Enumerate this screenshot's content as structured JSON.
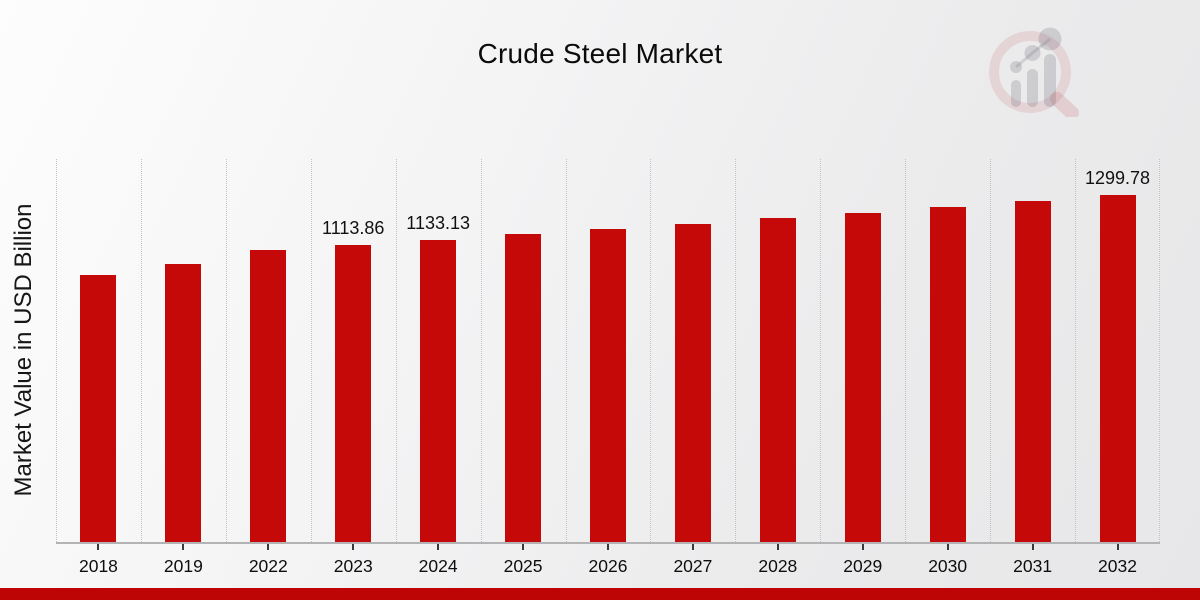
{
  "page": {
    "title": "Crude Steel Market"
  },
  "branding": {
    "logo_icon": "magnifier-bar-chart-watermark",
    "banner_color": "#be0505"
  },
  "chart_data": {
    "type": "bar",
    "title": "Crude Steel Market",
    "xlabel": "",
    "ylabel": "Market Value in USD Billion",
    "categories": [
      "2018",
      "2019",
      "2022",
      "2023",
      "2024",
      "2025",
      "2026",
      "2027",
      "2028",
      "2029",
      "2030",
      "2031",
      "2032"
    ],
    "values": [
      1001.2,
      1040.0,
      1095.9,
      1113.86,
      1133.13,
      1152.8,
      1172.5,
      1192.9,
      1213.2,
      1234.1,
      1255.3,
      1277.3,
      1299.78
    ],
    "data_labels": {
      "2023": "1113.86",
      "2024": "1133.13",
      "2032": "1299.78"
    },
    "bar_color": "#c50808",
    "ylim": [
      0,
      1435
    ],
    "grid": "vertical-dotted",
    "legend": "none",
    "y_axis_ticks_visible": false
  }
}
